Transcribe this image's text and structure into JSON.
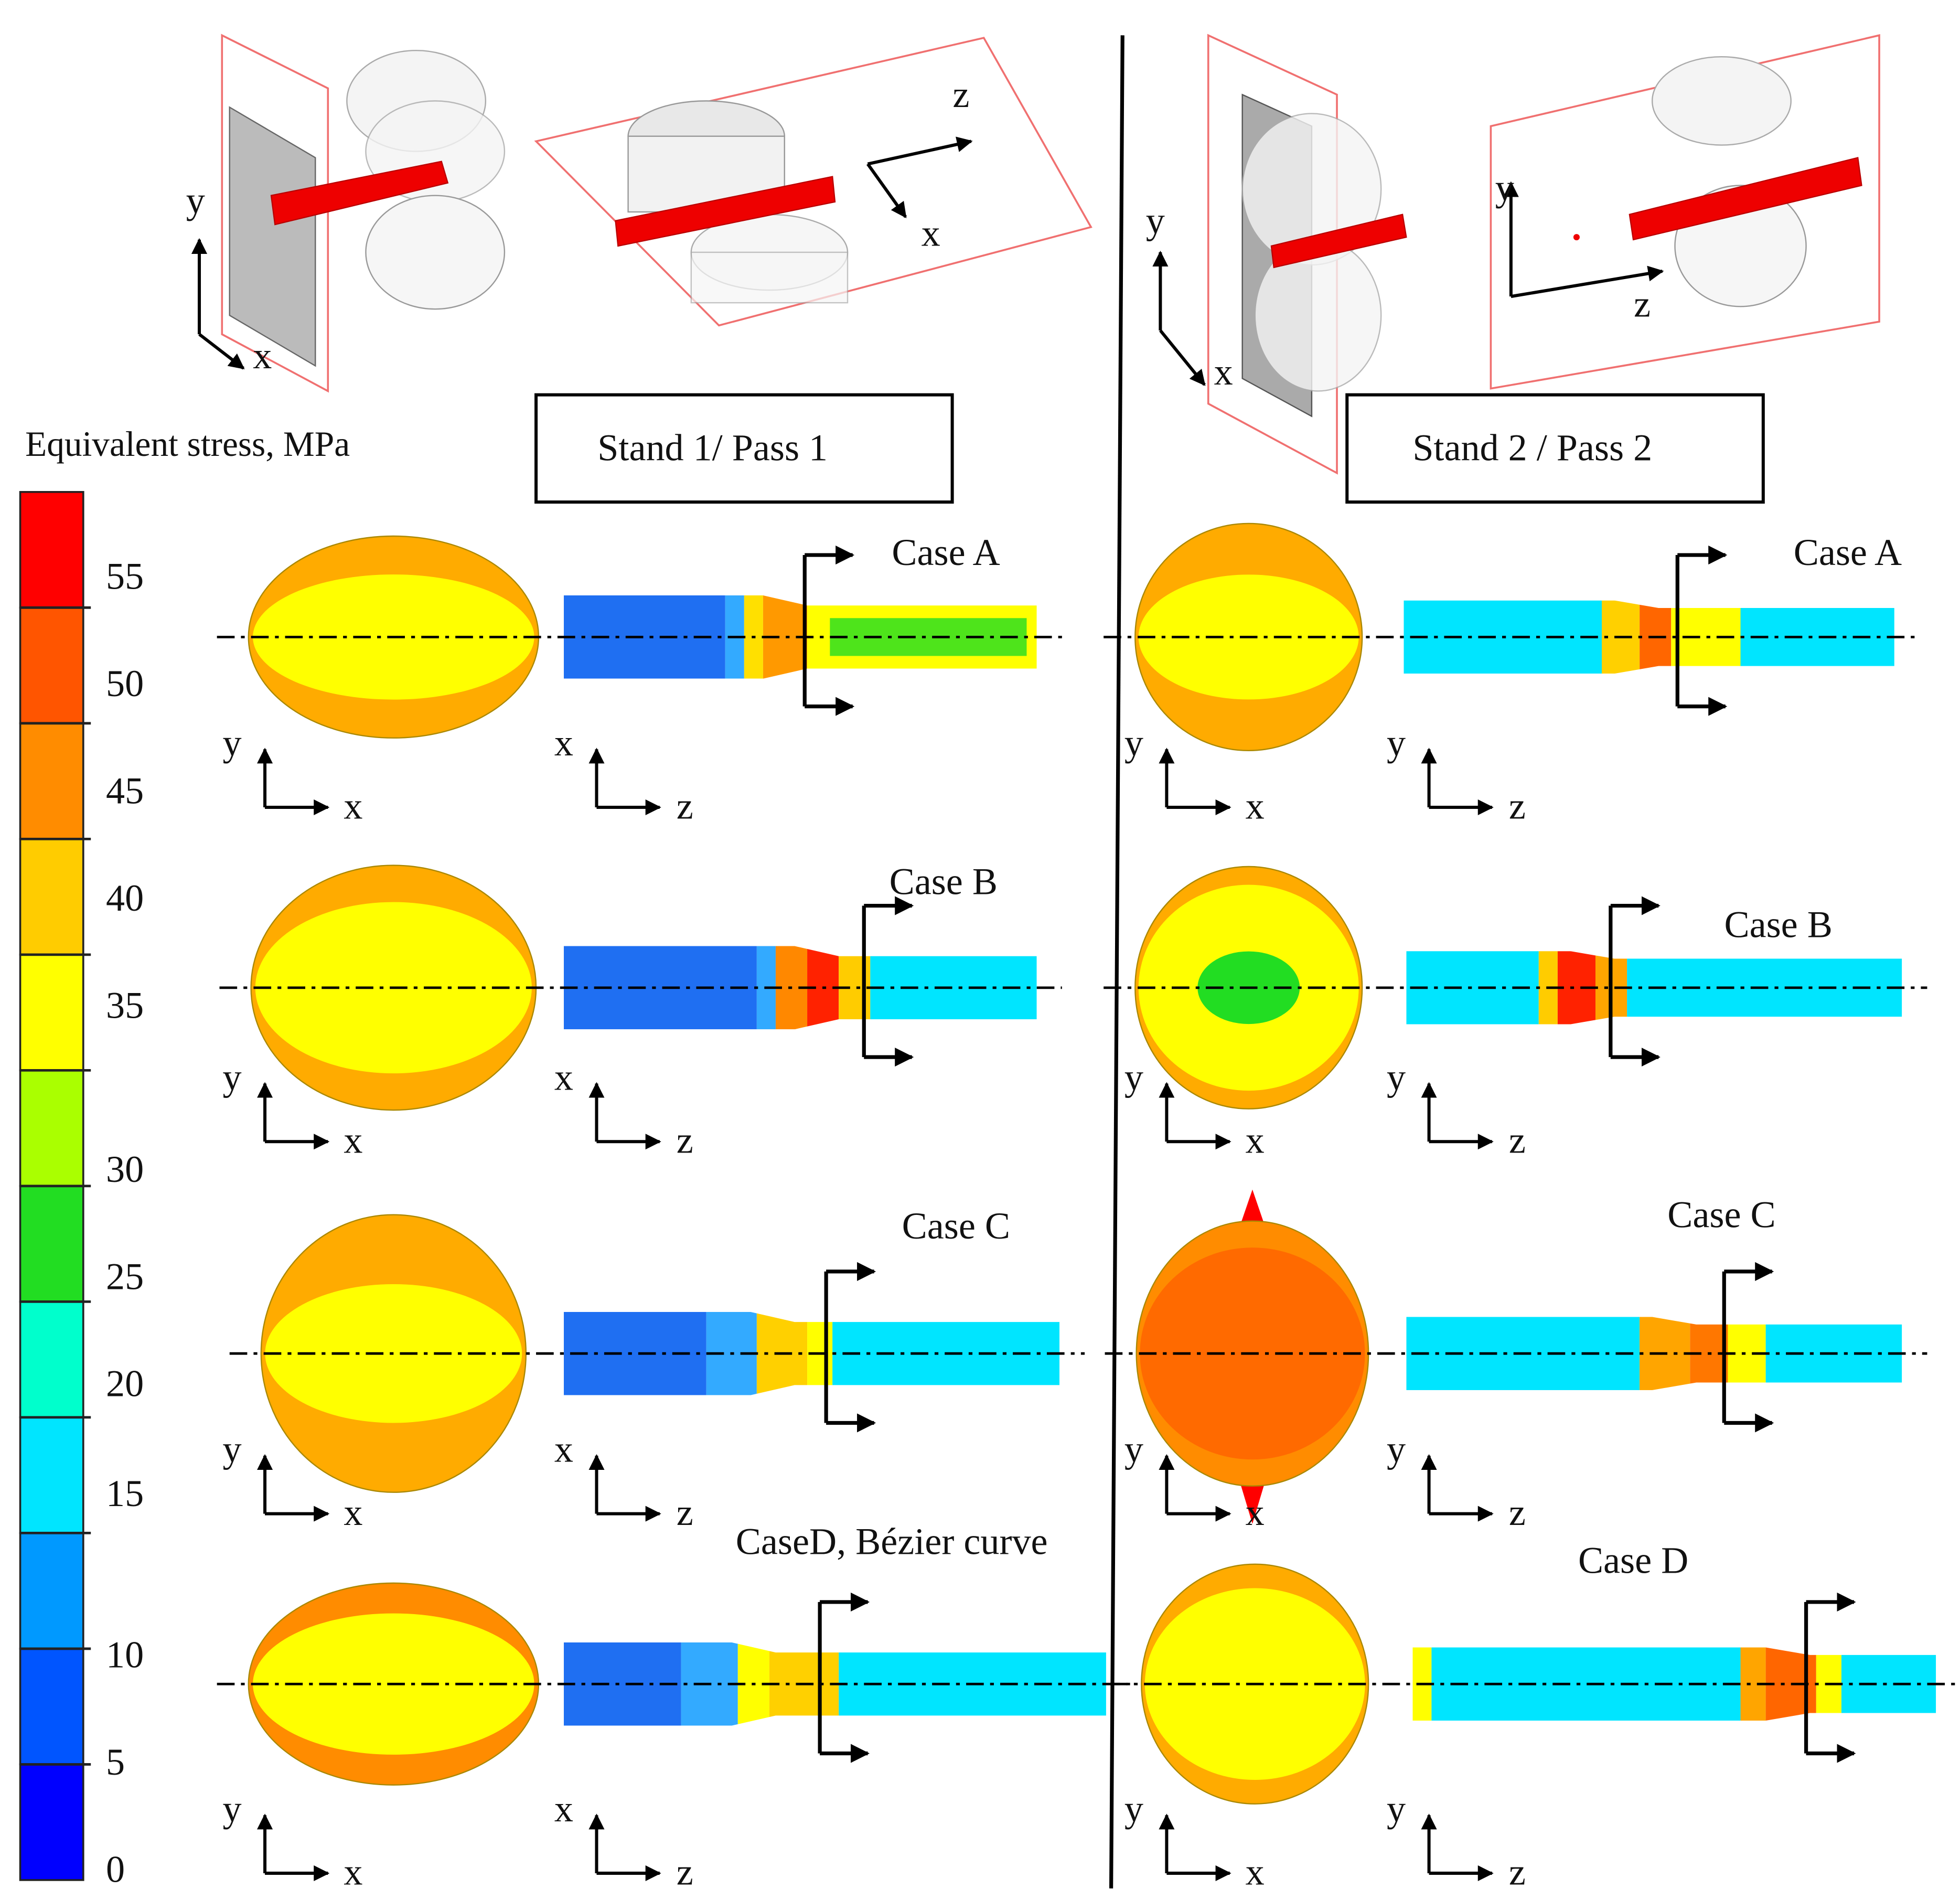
{
  "legend": {
    "title": "Equivalent stress, MPa",
    "ticks": [
      55,
      50,
      45,
      40,
      35,
      30,
      25,
      20,
      15,
      10,
      5,
      0
    ],
    "colors": [
      "#ff0000",
      "#ff5500",
      "#ff8c00",
      "#ffcc00",
      "#ffff00",
      "#aaff00",
      "#22dd22",
      "#00ffcc",
      "#00e5ff",
      "#0099ff",
      "#0055ff",
      "#0000ff"
    ]
  },
  "stands": [
    {
      "label": "Stand 1/ Pass 1",
      "views_3d": [
        [
          "y",
          "x"
        ],
        [
          "z",
          "x"
        ]
      ],
      "cases": [
        {
          "label": "Case A",
          "section_axes": [
            "y",
            "x"
          ],
          "rod_axes": [
            "x",
            "z"
          ]
        },
        {
          "label": "Case B",
          "section_axes": [
            "y",
            "x"
          ],
          "rod_axes": [
            "x",
            "z"
          ]
        },
        {
          "label": "Case C",
          "section_axes": [
            "y",
            "x"
          ],
          "rod_axes": [
            "x",
            "z"
          ]
        },
        {
          "label": "CaseD, Bézier curve",
          "section_axes": [
            "y",
            "x"
          ],
          "rod_axes": [
            "x",
            "z"
          ]
        }
      ]
    },
    {
      "label": "Stand 2 / Pass 2",
      "views_3d": [
        [
          "y",
          "x"
        ],
        [
          "y",
          "z"
        ]
      ],
      "cases": [
        {
          "label": "Case A",
          "section_axes": [
            "y",
            "x"
          ],
          "rod_axes": [
            "y",
            "z"
          ]
        },
        {
          "label": "Case B",
          "section_axes": [
            "y",
            "x"
          ],
          "rod_axes": [
            "y",
            "z"
          ]
        },
        {
          "label": "Case C",
          "section_axes": [
            "y",
            "x"
          ],
          "rod_axes": [
            "y",
            "z"
          ]
        },
        {
          "label": "Case D",
          "section_axes": [
            "y",
            "x"
          ],
          "rod_axes": [
            "y",
            "z"
          ]
        }
      ]
    }
  ]
}
